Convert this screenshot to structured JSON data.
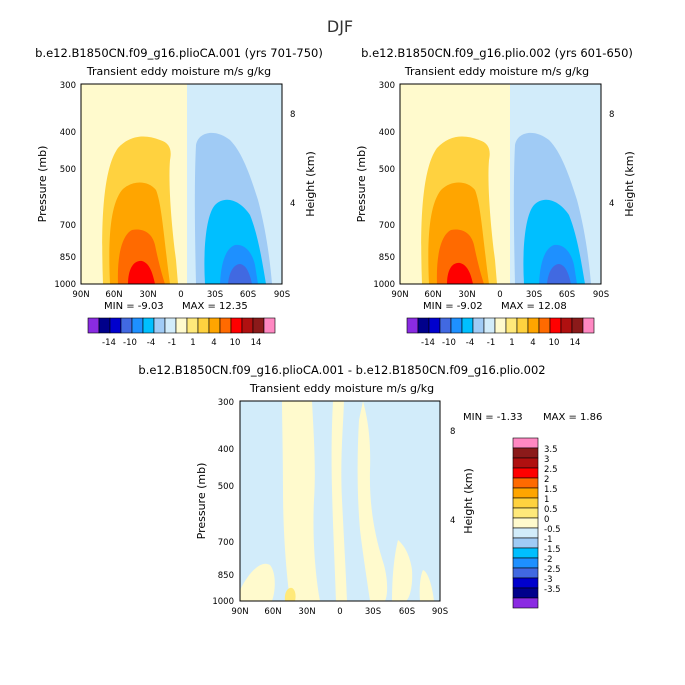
{
  "figure_title": "DJF",
  "colors": {
    "levels": [
      "#8a2be2",
      "#00008b",
      "#0000cd",
      "#4169e1",
      "#1e90ff",
      "#00bfff",
      "#a0cbf5",
      "#d2ecfa",
      "#fffacd",
      "#ffe97a",
      "#ffd23f",
      "#ffa500",
      "#ff6a00",
      "#ff0000",
      "#b01010",
      "#8b1a1a",
      "#ff88c2"
    ],
    "diff_levels": [
      "#8a2be2",
      "#00008b",
      "#0000cd",
      "#4169e1",
      "#1e90ff",
      "#00bfff",
      "#a0cbf5",
      "#d2ecfa",
      "#fffacd",
      "#ffe97a",
      "#ffd23f",
      "#ffa500",
      "#ff6a00",
      "#ff0000",
      "#b01010",
      "#8b1a1a",
      "#ff88c2"
    ]
  },
  "chart_data": [
    {
      "type": "heatmap",
      "title": "b.e12.B1850CN.f09_g16.plioCA.001 (yrs 701-750)",
      "subtitle": "Transient eddy moisture m/s g/kg",
      "ylabel": "Pressure (mb)",
      "ylabel_right": "Height (km)",
      "x_ticks": [
        "90N",
        "60N",
        "30N",
        "0",
        "30S",
        "60S",
        "90S"
      ],
      "y_ticks": [
        "300",
        "400",
        "500",
        "700",
        "850",
        "1000"
      ],
      "y_right_ticks": [
        "8",
        "4"
      ],
      "min_label": "MIN = -9.03",
      "max_label": "MAX = 12.35",
      "min": -9.03,
      "max": 12.35,
      "colorbar_labels": [
        "-14",
        "-10",
        "-4",
        "-1",
        "1",
        "4",
        "10",
        "14"
      ]
    },
    {
      "type": "heatmap",
      "title": "b.e12.B1850CN.f09_g16.plio.002 (yrs 601-650)",
      "subtitle": "Transient eddy moisture m/s g/kg",
      "ylabel": "Pressure (mb)",
      "ylabel_right": "Height (km)",
      "x_ticks": [
        "90N",
        "60N",
        "30N",
        "0",
        "30S",
        "60S",
        "90S"
      ],
      "y_ticks": [
        "300",
        "400",
        "500",
        "700",
        "850",
        "1000"
      ],
      "y_right_ticks": [
        "8",
        "4"
      ],
      "min_label": "MIN = -9.02",
      "max_label": "MAX = 12.08",
      "min": -9.02,
      "max": 12.08,
      "colorbar_labels": [
        "-14",
        "-10",
        "-4",
        "-1",
        "1",
        "4",
        "10",
        "14"
      ]
    },
    {
      "type": "heatmap",
      "title": "b.e12.B1850CN.f09_g16.plioCA.001 - b.e12.B1850CN.f09_g16.plio.002",
      "subtitle": "Transient eddy moisture m/s g/kg",
      "ylabel": "Pressure (mb)",
      "ylabel_right": "Height (km)",
      "x_ticks": [
        "90N",
        "60N",
        "30N",
        "0",
        "30S",
        "60S",
        "90S"
      ],
      "y_ticks": [
        "300",
        "400",
        "500",
        "700",
        "850",
        "1000"
      ],
      "y_right_ticks": [
        "8",
        "4"
      ],
      "min_label": "MIN = -1.33",
      "max_label": "MAX = 1.86",
      "min": -1.33,
      "max": 1.86,
      "colorbar_labels": [
        "3.5",
        "3",
        "2.5",
        "2",
        "1.5",
        "1",
        "0.5",
        "0",
        "-0.5",
        "-1",
        "-1.5",
        "-2",
        "-2.5",
        "-3",
        "-3.5"
      ]
    }
  ]
}
